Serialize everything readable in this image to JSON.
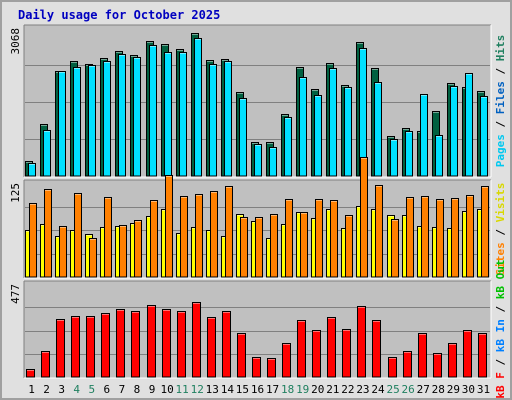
{
  "chart_data": {
    "type": "bar",
    "title": "Daily usage for October 2025",
    "x": [
      "1",
      "2",
      "3",
      "4",
      "5",
      "6",
      "7",
      "8",
      "9",
      "10",
      "11",
      "12",
      "13",
      "14",
      "15",
      "16",
      "17",
      "18",
      "19",
      "20",
      "21",
      "22",
      "23",
      "24",
      "25",
      "26",
      "27",
      "28",
      "29",
      "30",
      "31"
    ],
    "weekend_days": [
      "4",
      "5",
      "11",
      "12",
      "18",
      "19",
      "25",
      "26"
    ],
    "panels": [
      {
        "id": "hits-files-pages",
        "ymax_label": "3068",
        "ymax": 3068,
        "series": [
          {
            "name": "Hits",
            "color": "#006040",
            "values": [
              320,
              1075,
              2185,
              2380,
              2330,
              2455,
              2585,
              2500,
              2805,
              2745,
              2625,
              2955,
              2400,
              2425,
              1745,
              700,
              700,
              1290,
              2255,
              1795,
              2335,
              1890,
              2775,
              2230,
              835,
              1005,
              935,
              1350,
              1935,
              1840,
              1755
            ]
          },
          {
            "name": "Files",
            "color": "#0080ff",
            "values": [
              270,
              960,
              2170,
              2250,
              2300,
              2390,
              2525,
              2470,
              2725,
              2575,
              2575,
              2855,
              2320,
              2380,
              1625,
              670,
              610,
              1225,
              2050,
              1670,
              2235,
              1840,
              2645,
              1950,
              770,
              940,
              1710,
              860,
              1865,
              2140,
              1650
            ]
          },
          {
            "name": "Pages",
            "color": "#00e0ff",
            "values": [
              270,
              960,
              2170,
              2250,
              2300,
              2390,
              2525,
              2470,
              2725,
              2575,
              2575,
              2855,
              2320,
              2380,
              1625,
              670,
              610,
              1225,
              2050,
              1670,
              2235,
              1840,
              2645,
              1950,
              770,
              940,
              1710,
              860,
              1865,
              2140,
              1650
            ]
          }
        ]
      },
      {
        "id": "visits-sites",
        "ymax_label": "125",
        "ymax": 125,
        "series": [
          {
            "name": "Visits",
            "color": "#ffff00",
            "values": [
              62,
              71,
              55,
              63,
              57,
              66,
              68,
              72,
              81,
              90,
              58,
              66,
              63,
              55,
              84,
              75,
              52,
              71,
              86,
              78,
              91,
              65,
              95,
              90,
              83,
              83,
              68,
              67,
              65,
              88,
              90
            ]
          },
          {
            "name": "Sites",
            "color": "#ff8000",
            "values": [
              98,
              117,
              68,
              112,
              52,
              107,
              69,
              76,
              103,
              135,
              108,
              111,
              115,
              121,
              80,
              80,
              84,
              104,
              87,
              104,
              103,
              82,
              159,
              122,
              77,
              106,
              108,
              104,
              105,
              109,
              121
            ]
          }
        ]
      },
      {
        "id": "kbf-kbin-kbout",
        "ymax_label": "477",
        "ymax": 477,
        "series": [
          {
            "name": "KB F",
            "color": "#ff0000",
            "values": [
              40,
              135,
              296,
              315,
              315,
              330,
              347,
              340,
              368,
              347,
              341,
              385,
              309,
              336,
              225,
              102,
              96,
              172,
              292,
              241,
              307,
              246,
              362,
              293,
              104,
              131,
              224,
              121,
              174,
              240,
              227
            ]
          },
          {
            "name": "KB In",
            "color": "#0080ff",
            "values": []
          },
          {
            "name": "KB Out",
            "color": "#00c000",
            "values": []
          }
        ]
      }
    ],
    "legend_position": "right (vertical)",
    "grid": true
  },
  "legend": {
    "top": [
      {
        "text": "Pages",
        "color": "#00c8f0"
      },
      {
        "text": " / ",
        "color": "#000000"
      },
      {
        "text": "Files",
        "color": "#0060c0"
      },
      {
        "text": " / ",
        "color": "#000000"
      },
      {
        "text": "Hits",
        "color": "#208060"
      }
    ],
    "mid": [
      {
        "text": "Sites",
        "color": "#ff8000"
      },
      {
        "text": " / ",
        "color": "#000000"
      },
      {
        "text": "Visits",
        "color": "#d8d800"
      }
    ],
    "bottom": [
      {
        "text": "kB F",
        "color": "#ff0000"
      },
      {
        "text": " / ",
        "color": "#000000"
      },
      {
        "text": "kB In",
        "color": "#0080ff"
      },
      {
        "text": " / ",
        "color": "#000000"
      },
      {
        "text": "kB Out",
        "color": "#00c000"
      }
    ]
  },
  "colors": {
    "panel_bg": "#c0c0c0",
    "title": "#0000c0",
    "weekday_label": "#000000",
    "weekend_label": "#208060"
  }
}
